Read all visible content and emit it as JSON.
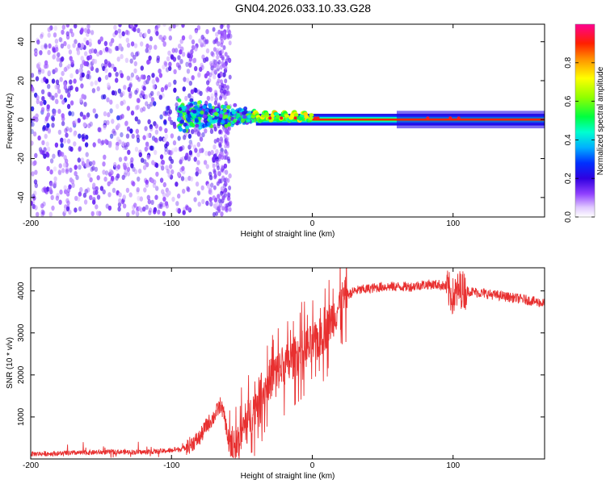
{
  "title": "GN04.2026.033.10.33.G28",
  "chart_data": [
    {
      "type": "heatmap",
      "name": "spectrogram",
      "xlabel": "Height of straight line (km)",
      "ylabel": "Frequency (Hz)",
      "xlim": [
        -200,
        165
      ],
      "ylim": [
        -50,
        49
      ],
      "xticks": [
        -200,
        -100,
        0,
        100
      ],
      "yticks": [
        -40,
        -20,
        0,
        20,
        40
      ],
      "colorbar": {
        "label": "Normalized spectral amplitude",
        "range": [
          0,
          1
        ],
        "ticks": [
          0.0,
          0.2,
          0.4,
          0.6,
          0.8
        ],
        "colors": [
          "#ffffff",
          "#c070ff",
          "#5000e0",
          "#0000ff",
          "#00b0ff",
          "#00ffd0",
          "#00ff40",
          "#a0ff00",
          "#ffff00",
          "#ffa000",
          "#ff2000",
          "#ff0080"
        ]
      },
      "features": [
        {
          "region": "noise",
          "x": [
            -200,
            -58
          ],
          "freq_spread_hz": 49,
          "amplitude": [
            0.05,
            0.25
          ]
        },
        {
          "region": "signal_emergence",
          "x": [
            -95,
            -40
          ],
          "freq_center_hz": 2,
          "freq_spread_hz": 12,
          "amplitude": [
            0.3,
            0.5
          ]
        },
        {
          "region": "tone",
          "x": [
            -40,
            165
          ],
          "freq_hz": 0,
          "amplitude": [
            0.5,
            0.95
          ]
        }
      ]
    },
    {
      "type": "line",
      "name": "snr",
      "xlabel": "Height of straight line (km)",
      "ylabel": "SNR (10 * v/v)",
      "xlim": [
        -200,
        165
      ],
      "ylim": [
        0,
        4550
      ],
      "xticks": [
        -200,
        -100,
        0,
        100
      ],
      "yticks": [
        1000,
        2000,
        3000,
        4000
      ],
      "color": "#e83030",
      "series": [
        {
          "name": "SNR",
          "x": [
            -200,
            -180,
            -160,
            -140,
            -120,
            -100,
            -90,
            -80,
            -75,
            -70,
            -65,
            -62,
            -60,
            -55,
            -50,
            -45,
            -40,
            -35,
            -30,
            -25,
            -20,
            -15,
            -10,
            -5,
            0,
            5,
            10,
            15,
            20,
            25,
            30,
            40,
            50,
            60,
            70,
            80,
            90,
            95,
            100,
            105,
            110,
            120,
            130,
            140,
            150,
            165
          ],
          "y": [
            120,
            130,
            150,
            170,
            160,
            200,
            260,
            500,
            800,
            1000,
            1300,
            950,
            500,
            250,
            650,
            950,
            1350,
            1600,
            1900,
            2100,
            2200,
            2350,
            2500,
            2650,
            2700,
            2850,
            3100,
            3400,
            3700,
            3900,
            4000,
            4050,
            4100,
            4100,
            4100,
            4150,
            4150,
            4100,
            3850,
            4050,
            4000,
            3950,
            3900,
            3850,
            3800,
            3700
          ]
        }
      ]
    }
  ]
}
